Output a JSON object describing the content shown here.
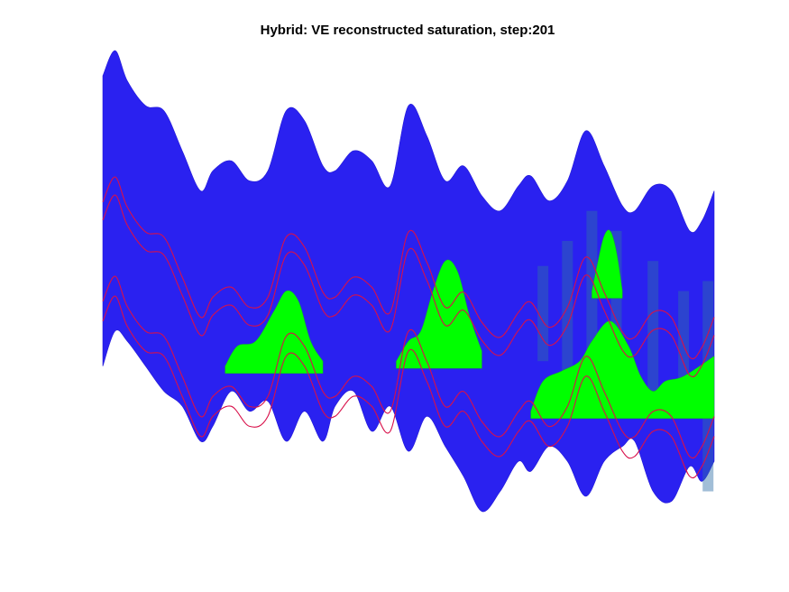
{
  "chart_data": {
    "type": "heatmap",
    "title": "Hybrid: VE reconstructed saturation, step:201",
    "xlabel": "",
    "ylabel": "",
    "grid": false,
    "axes_visible": false,
    "colors": {
      "water": "#2a21f0",
      "co2_plume": "#00ff00",
      "mixed_zone": "#2f6fa6",
      "contour": "#d8104a",
      "background": "#ffffff"
    },
    "series": [
      {
        "kind": "layer",
        "role": "top-surface",
        "x": [
          0,
          0.02,
          0.04,
          0.07,
          0.1,
          0.13,
          0.16,
          0.18,
          0.21,
          0.24,
          0.27,
          0.3,
          0.33,
          0.36,
          0.38,
          0.41,
          0.44,
          0.47,
          0.5,
          0.53,
          0.56,
          0.59,
          0.62,
          0.65,
          0.68,
          0.7,
          0.73,
          0.76,
          0.79,
          0.82,
          0.85,
          0.87,
          0.9,
          0.93,
          0.96,
          0.98,
          1
        ],
        "values": [
          0.93,
          0.98,
          0.92,
          0.87,
          0.86,
          0.78,
          0.7,
          0.74,
          0.76,
          0.72,
          0.74,
          0.86,
          0.84,
          0.75,
          0.74,
          0.78,
          0.76,
          0.71,
          0.87,
          0.81,
          0.72,
          0.75,
          0.69,
          0.66,
          0.71,
          0.73,
          0.68,
          0.72,
          0.82,
          0.75,
          0.67,
          0.66,
          0.71,
          0.7,
          0.62,
          0.64,
          0.7
        ]
      },
      {
        "kind": "layer",
        "role": "bottom-surface",
        "x": [
          0,
          0.02,
          0.04,
          0.07,
          0.1,
          0.13,
          0.16,
          0.18,
          0.21,
          0.24,
          0.27,
          0.3,
          0.33,
          0.36,
          0.38,
          0.41,
          0.44,
          0.47,
          0.5,
          0.53,
          0.56,
          0.59,
          0.62,
          0.65,
          0.68,
          0.7,
          0.73,
          0.76,
          0.79,
          0.82,
          0.85,
          0.87,
          0.9,
          0.93,
          0.96,
          0.98,
          1
        ],
        "values": [
          0.35,
          0.42,
          0.4,
          0.35,
          0.3,
          0.27,
          0.2,
          0.23,
          0.3,
          0.26,
          0.28,
          0.2,
          0.26,
          0.2,
          0.27,
          0.3,
          0.22,
          0.27,
          0.18,
          0.25,
          0.19,
          0.13,
          0.06,
          0.1,
          0.16,
          0.14,
          0.19,
          0.16,
          0.09,
          0.16,
          0.19,
          0.2,
          0.1,
          0.08,
          0.15,
          0.12,
          0.16
        ]
      },
      {
        "kind": "layer",
        "role": "upper-plume",
        "x": [
          0.8,
          0.81,
          0.82,
          0.83,
          0.84,
          0.85
        ],
        "values": [
          0.5,
          0.56,
          0.61,
          0.62,
          0.58,
          0.5
        ]
      },
      {
        "kind": "layer",
        "role": "lower-plume-1",
        "x": [
          0.2,
          0.22,
          0.25,
          0.28,
          0.3,
          0.32,
          0.34,
          0.36
        ],
        "values": [
          0.35,
          0.39,
          0.4,
          0.46,
          0.5,
          0.48,
          0.4,
          0.36
        ]
      },
      {
        "kind": "layer",
        "role": "lower-plume-2",
        "x": [
          0.48,
          0.5,
          0.52,
          0.54,
          0.56,
          0.58,
          0.6,
          0.62
        ],
        "values": [
          0.36,
          0.4,
          0.42,
          0.5,
          0.56,
          0.54,
          0.45,
          0.38
        ]
      },
      {
        "kind": "layer",
        "role": "lower-plume-3",
        "x": [
          0.7,
          0.72,
          0.75,
          0.78,
          0.8,
          0.83,
          0.86,
          0.88,
          0.9,
          0.92,
          0.95,
          1
        ],
        "values": [
          0.26,
          0.32,
          0.34,
          0.36,
          0.4,
          0.44,
          0.39,
          0.33,
          0.3,
          0.32,
          0.33,
          0.37
        ]
      }
    ]
  }
}
